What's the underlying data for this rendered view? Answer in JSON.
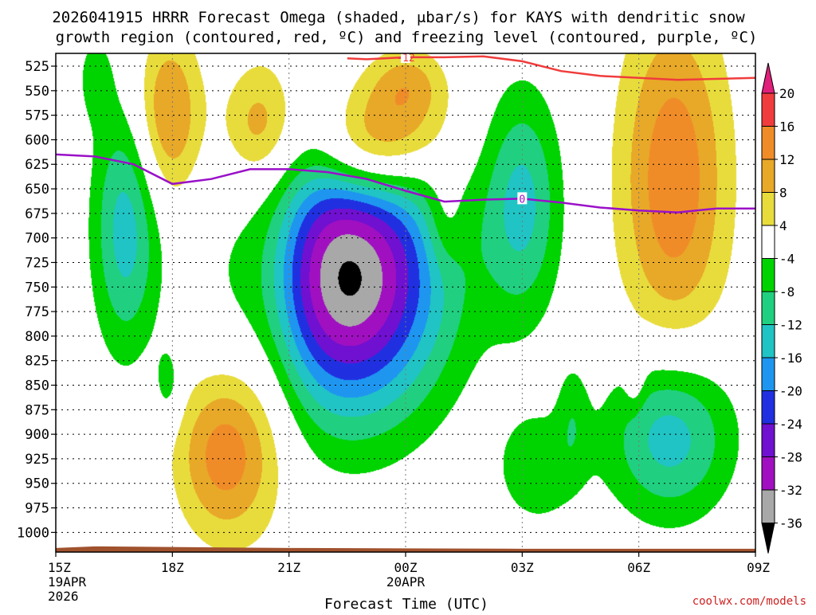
{
  "chart_data": {
    "type": "time-height cross section (filled contour)",
    "title_line1": "2026041915 HRRR Forecast Omega (shaded, μbar/s) for KAYS with dendritic snow",
    "title_line2": "growth region (contoured, red, ºC) and freezing level (contoured, purple, ºC)",
    "xlabel": "Forecast Time (UTC)",
    "credit": "coolwx.com/models",
    "x_ticks": [
      {
        "hour": 0,
        "label": "15Z",
        "sub1": "19APR",
        "sub2": "2026"
      },
      {
        "hour": 3,
        "label": "18Z"
      },
      {
        "hour": 6,
        "label": "21Z"
      },
      {
        "hour": 9,
        "label": "00Z",
        "sub1": "20APR"
      },
      {
        "hour": 12,
        "label": "03Z"
      },
      {
        "hour": 15,
        "label": "06Z"
      },
      {
        "hour": 18,
        "label": "09Z"
      }
    ],
    "xlim": [
      0,
      18
    ],
    "ylim": [
      512,
      1020
    ],
    "pressure_levels": [
      525,
      550,
      575,
      600,
      625,
      650,
      675,
      700,
      725,
      750,
      775,
      800,
      825,
      850,
      875,
      900,
      925,
      950,
      975,
      1000
    ],
    "colorbar": {
      "labels": [
        "20",
        "16",
        "12",
        "8",
        "4",
        "-4",
        "-8",
        "-12",
        "-16",
        "-20",
        "-24",
        "-28",
        "-32",
        "-36"
      ],
      "bins": [
        {
          "lo": 20,
          "hi": null,
          "color": "#e0207a"
        },
        {
          "lo": 16,
          "hi": 20,
          "color": "#f03c3c"
        },
        {
          "lo": 12,
          "hi": 16,
          "color": "#f08c28"
        },
        {
          "lo": 8,
          "hi": 12,
          "color": "#e8a828"
        },
        {
          "lo": 4,
          "hi": 8,
          "color": "#e8dc3c"
        },
        {
          "lo": -4,
          "hi": 4,
          "color": "#ffffff"
        },
        {
          "lo": -8,
          "hi": -4,
          "color": "#00d400"
        },
        {
          "lo": -12,
          "hi": -8,
          "color": "#20d080"
        },
        {
          "lo": -16,
          "hi": -12,
          "color": "#20c4c4"
        },
        {
          "lo": -20,
          "hi": -16,
          "color": "#1e96f0"
        },
        {
          "lo": -24,
          "hi": -20,
          "color": "#2030e0"
        },
        {
          "lo": -28,
          "hi": -24,
          "color": "#7010d0"
        },
        {
          "lo": -32,
          "hi": -28,
          "color": "#a010c0"
        },
        {
          "lo": -36,
          "hi": -32,
          "color": "#a8a8a8"
        },
        {
          "lo": null,
          "hi": -36,
          "color": "#000000"
        }
      ]
    },
    "omega_features": [
      {
        "hour": 7.5,
        "p": 740,
        "value": -37,
        "shx": 2.4,
        "shp": 135,
        "rot": 0.35
      },
      {
        "hour": 8.5,
        "p": 590,
        "value": 16,
        "shx": 1.6,
        "shp": 65,
        "rot": 0
      },
      {
        "hour": 7.7,
        "p": 620,
        "value": 6,
        "shx": 1.2,
        "shp": 45,
        "rot": 0
      },
      {
        "hour": 9.1,
        "p": 540,
        "value": 6,
        "shx": 0.9,
        "shp": 35,
        "rot": 0
      },
      {
        "hour": 10.0,
        "p": 685,
        "value": 5,
        "shx": 0.5,
        "shp": 50,
        "rot": 0
      },
      {
        "hour": 5.5,
        "p": 740,
        "value": 8,
        "shx": 1.1,
        "shp": 210,
        "rot": -0.55
      },
      {
        "hour": 4.3,
        "p": 920,
        "value": 14,
        "shx": 1.2,
        "shp": 85,
        "rot": -0.1
      },
      {
        "hour": 5.2,
        "p": 585,
        "value": 8,
        "shx": 0.9,
        "shp": 55,
        "rot": 0.4
      },
      {
        "hour": 2.9,
        "p": 575,
        "value": 13,
        "shx": 0.85,
        "shp": 85,
        "rot": 0
      },
      {
        "hour": 1.8,
        "p": 690,
        "value": -14,
        "shx": 0.85,
        "shp": 125,
        "rot": 0
      },
      {
        "hour": 1.0,
        "p": 535,
        "value": -5,
        "shx": 0.5,
        "shp": 50,
        "rot": 0
      },
      {
        "hour": 2.9,
        "p": 850,
        "value": -6,
        "shx": 0.35,
        "shp": 40,
        "rot": 0
      },
      {
        "hour": 12.0,
        "p": 665,
        "value": -13,
        "shx": 1.0,
        "shp": 115,
        "rot": 0
      },
      {
        "hour": 15.9,
        "p": 640,
        "value": 15,
        "shx": 1.4,
        "shp": 175,
        "rot": 0
      },
      {
        "hour": 15.8,
        "p": 900,
        "value": -15,
        "shx": 1.6,
        "shp": 85,
        "rot": 0
      },
      {
        "hour": 12.4,
        "p": 935,
        "value": -7,
        "shx": 1.1,
        "shp": 60,
        "rot": 0.2
      },
      {
        "hour": 13.3,
        "p": 880,
        "value": -5,
        "shx": 0.4,
        "shp": 55,
        "rot": 0
      },
      {
        "hour": 14.9,
        "p": 840,
        "value": 5,
        "shx": 0.25,
        "shp": 35,
        "rot": 0
      }
    ],
    "freezing_level": {
      "label": "0",
      "label_hour": 12.0,
      "hours": [
        0,
        1,
        2,
        3,
        4,
        5,
        6,
        7,
        8,
        9,
        10,
        11,
        12,
        13,
        14,
        15,
        16,
        17,
        18
      ],
      "pressure": [
        615,
        617,
        625,
        645,
        640,
        630,
        630,
        633,
        640,
        652,
        663,
        661,
        660,
        664,
        669,
        672,
        674,
        670,
        670
      ]
    },
    "dgz_line": {
      "label": "-12",
      "label_hour": 9.0,
      "hours": [
        7.5,
        8.0,
        9.0,
        10.0,
        11.0,
        12.0,
        13.0,
        14.0,
        15.0,
        16.0,
        17.0,
        18.0
      ],
      "pressure": [
        517,
        518,
        516,
        516,
        515,
        520,
        530,
        535,
        537,
        539,
        538,
        537
      ]
    },
    "surface_terrain_top_p": 1015
  }
}
